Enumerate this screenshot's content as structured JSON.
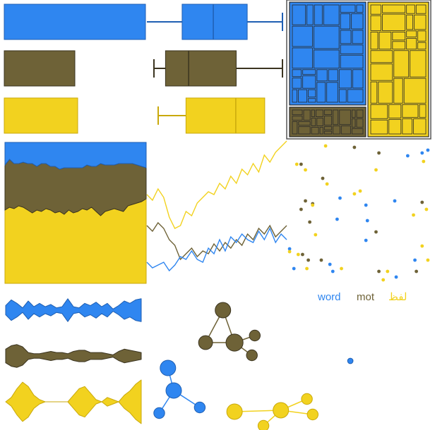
{
  "palette": {
    "blue": "#2f86f0",
    "olive": "#6e6237",
    "yellow": "#f2d21f",
    "outline_blue": "#1f5fb3",
    "outline_olive": "#3b3420",
    "outline_yellow": "#c9a90c"
  },
  "chart_data": [
    {
      "type": "bar",
      "panel": "bars",
      "series": [
        {
          "color": "blue",
          "value": 100
        },
        {
          "color": "olive",
          "value": 50
        },
        {
          "color": "yellow",
          "value": 52
        }
      ]
    },
    {
      "type": "boxplot",
      "panel": "boxes",
      "series": [
        {
          "color": "blue",
          "whisker_low": 0.0,
          "q1": 0.26,
          "median": 0.49,
          "q3": 0.74,
          "whisker_high": 1.0
        },
        {
          "color": "olive",
          "whisker_low": 0.0,
          "q1": 0.09,
          "median": 0.27,
          "q3": 0.64,
          "whisker_high": 1.0
        },
        {
          "color": "yellow",
          "whisker_low": 0.0,
          "q1": 0.24,
          "median": 0.67,
          "q3": 0.92,
          "whisker_high": 0.92
        }
      ]
    },
    {
      "type": "area",
      "panel": "stacked-area",
      "stacked": true,
      "normalized": true,
      "series": [
        {
          "color": "yellow",
          "values": [
            0.52,
            0.54,
            0.53,
            0.55,
            0.54,
            0.52,
            0.5,
            0.52,
            0.51,
            0.53,
            0.52,
            0.5,
            0.51,
            0.49,
            0.52,
            0.5,
            0.51,
            0.53,
            0.52,
            0.54,
            0.51,
            0.48,
            0.51,
            0.52,
            0.53,
            0.52,
            0.51,
            0.55,
            0.56,
            0.57,
            0.58,
            0.6
          ]
        },
        {
          "color": "olive",
          "values": [
            0.32,
            0.34,
            0.32,
            0.3,
            0.32,
            0.33,
            0.35,
            0.31,
            0.34,
            0.32,
            0.31,
            0.33,
            0.3,
            0.33,
            0.3,
            0.32,
            0.31,
            0.29,
            0.32,
            0.29,
            0.32,
            0.37,
            0.33,
            0.32,
            0.31,
            0.33,
            0.34,
            0.3,
            0.29,
            0.27,
            0.25,
            0.22
          ]
        },
        {
          "color": "blue",
          "values": [
            0.16,
            0.12,
            0.15,
            0.15,
            0.14,
            0.15,
            0.15,
            0.17,
            0.15,
            0.15,
            0.17,
            0.17,
            0.19,
            0.18,
            0.18,
            0.18,
            0.18,
            0.18,
            0.16,
            0.17,
            0.17,
            0.15,
            0.16,
            0.16,
            0.16,
            0.15,
            0.15,
            0.15,
            0.15,
            0.16,
            0.17,
            0.18
          ]
        }
      ]
    },
    {
      "type": "line",
      "panel": "lines",
      "series": [
        {
          "color": "yellow",
          "values": [
            0.62,
            0.58,
            0.66,
            0.6,
            0.46,
            0.38,
            0.4,
            0.5,
            0.47,
            0.56,
            0.6,
            0.64,
            0.62,
            0.7,
            0.66,
            0.75,
            0.7,
            0.8,
            0.76,
            0.84,
            0.78,
            0.9,
            0.85,
            0.92,
            0.96,
            1.0
          ]
        },
        {
          "color": "olive",
          "values": [
            0.4,
            0.36,
            0.42,
            0.38,
            0.3,
            0.26,
            0.16,
            0.2,
            0.24,
            0.18,
            0.22,
            0.2,
            0.27,
            0.22,
            0.28,
            0.24,
            0.3,
            0.26,
            0.34,
            0.3,
            0.38,
            0.34,
            0.4,
            0.32,
            0.36,
            0.4
          ]
        },
        {
          "color": "blue",
          "values": [
            0.14,
            0.1,
            0.12,
            0.14,
            0.08,
            0.12,
            0.18,
            0.16,
            0.22,
            0.16,
            0.14,
            0.24,
            0.2,
            0.3,
            0.22,
            0.32,
            0.28,
            0.34,
            0.3,
            0.28,
            0.36,
            0.3,
            0.38,
            0.28,
            0.34,
            0.3
          ]
        }
      ]
    },
    {
      "type": "treemap",
      "panel": "treemap",
      "groups": [
        {
          "color": "blue",
          "weight": 0.52
        },
        {
          "color": "yellow",
          "weight": 0.33
        },
        {
          "color": "olive",
          "weight": 0.15
        }
      ]
    },
    {
      "type": "scatter",
      "panel": "scatter",
      "legend": [
        "word",
        "mot",
        "لفظ"
      ],
      "series": [
        {
          "color": "blue",
          "points": [
            [
              0.98,
              0.04
            ],
            [
              0.84,
              0.08
            ],
            [
              0.94,
              0.06
            ],
            [
              0.37,
              0.38
            ],
            [
              0.55,
              0.43
            ],
            [
              0.75,
              0.4
            ],
            [
              0.35,
              0.53
            ],
            [
              0.02,
              0.74
            ],
            [
              0.56,
              0.54
            ],
            [
              0.55,
              0.68
            ],
            [
              0.05,
              0.88
            ],
            [
              0.76,
              0.94
            ],
            [
              0.89,
              0.82
            ],
            [
              0.32,
              0.9
            ],
            [
              0.3,
              0.85
            ]
          ]
        },
        {
          "color": "olive",
          "points": [
            [
              0.47,
              0.02
            ],
            [
              0.64,
              0.06
            ],
            [
              0.1,
              0.14
            ],
            [
              0.25,
              0.24
            ],
            [
              0.13,
              0.4
            ],
            [
              0.1,
              0.46
            ],
            [
              0.18,
              0.42
            ],
            [
              0.16,
              0.55
            ],
            [
              0.94,
              0.41
            ],
            [
              0.62,
              0.62
            ],
            [
              0.11,
              0.78
            ],
            [
              0.24,
              0.82
            ],
            [
              0.15,
              0.82
            ],
            [
              0.9,
              0.9
            ],
            [
              0.64,
              0.9
            ]
          ]
        },
        {
          "color": "yellow",
          "points": [
            [
              0.27,
              0.01
            ],
            [
              0.95,
              0.12
            ],
            [
              0.07,
              0.14
            ],
            [
              0.13,
              0.18
            ],
            [
              0.62,
              0.18
            ],
            [
              0.28,
              0.28
            ],
            [
              0.47,
              0.35
            ],
            [
              0.51,
              0.33
            ],
            [
              0.18,
              0.43
            ],
            [
              0.97,
              0.46
            ],
            [
              0.88,
              0.5
            ],
            [
              0.2,
              0.64
            ],
            [
              0.02,
              0.76
            ],
            [
              0.08,
              0.78
            ],
            [
              0.38,
              0.88
            ],
            [
              0.14,
              0.88
            ],
            [
              0.7,
              0.9
            ],
            [
              0.94,
              0.72
            ],
            [
              0.67,
              0.96
            ],
            [
              0.98,
              0.82
            ]
          ]
        }
      ]
    },
    {
      "type": "violin",
      "panel": "violins",
      "series": [
        {
          "color": "blue",
          "widths": [
            0.4,
            0.9,
            0.6,
            0.2,
            0.8,
            0.3,
            0.6,
            0.3,
            0.5,
            0.2,
            0.3,
            1.0,
            0.3,
            0.2,
            0.6,
            0.4,
            0.7,
            0.3,
            0.6,
            0.1,
            0.4,
            0.8,
            0.6,
            0.9,
            1.0
          ]
        },
        {
          "color": "olive",
          "widths": [
            0.6,
            0.9,
            1.0,
            0.8,
            0.3,
            0.2,
            0.2,
            0.3,
            0.4,
            0.3,
            0.3,
            0.2,
            0.4,
            0.5,
            0.5,
            0.3,
            0.3,
            0.3,
            0.2,
            0.1,
            0.4,
            0.6,
            0.5,
            0.4,
            0.3
          ]
        },
        {
          "color": "yellow",
          "widths": [
            0.0,
            0.2,
            0.6,
            0.9,
            0.7,
            0.3,
            0.1,
            0.0,
            0.0,
            0.0,
            0.0,
            0.0,
            0.3,
            0.6,
            0.7,
            0.4,
            0.1,
            0.0,
            0.2,
            0.1,
            0.0,
            0.3,
            0.5,
            0.8,
            1.0
          ]
        }
      ]
    },
    {
      "type": "network",
      "panel": "networks",
      "graphs": [
        {
          "color": "olive",
          "nodes": [
            [
              0.27,
              0.15
            ],
            [
              0.21,
              0.38
            ],
            [
              0.31,
              0.38
            ],
            [
              0.38,
              0.33
            ],
            [
              0.37,
              0.47
            ]
          ],
          "sizes": [
            1.0,
            0.9,
            1.1,
            0.7,
            0.7
          ],
          "edges": [
            [
              0,
              2
            ],
            [
              1,
              2
            ],
            [
              2,
              3
            ],
            [
              2,
              4
            ],
            [
              0,
              1
            ]
          ]
        },
        {
          "color": "blue",
          "nodes": [
            [
              0.08,
              0.56
            ],
            [
              0.1,
              0.72
            ],
            [
              0.05,
              0.88
            ],
            [
              0.19,
              0.84
            ]
          ],
          "sizes": [
            1.0,
            1.0,
            0.7,
            0.7
          ],
          "edges": [
            [
              0,
              1
            ],
            [
              1,
              2
            ],
            [
              1,
              3
            ]
          ]
        },
        {
          "color": "yellow",
          "nodes": [
            [
              0.31,
              0.87
            ],
            [
              0.47,
              0.86
            ],
            [
              0.56,
              0.78
            ],
            [
              0.58,
              0.89
            ],
            [
              0.41,
              0.97
            ]
          ],
          "sizes": [
            1.0,
            1.0,
            0.7,
            0.7,
            0.7
          ],
          "edges": [
            [
              0,
              1
            ],
            [
              1,
              2
            ],
            [
              1,
              3
            ],
            [
              1,
              4
            ]
          ]
        },
        {
          "color": "blue",
          "nodes": [
            [
              0.71,
              0.51
            ]
          ],
          "sizes": [
            0.35
          ],
          "edges": []
        }
      ]
    }
  ]
}
